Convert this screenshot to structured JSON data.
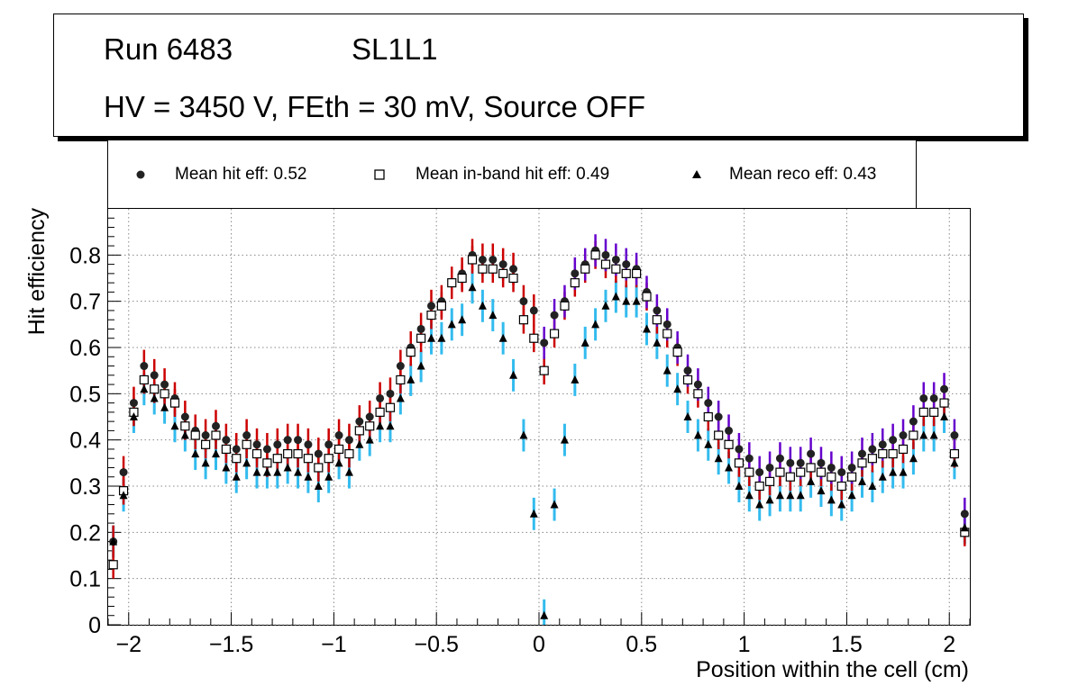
{
  "title": {
    "run": "Run 6483",
    "layer": "SL1L1",
    "conditions": "HV = 3450 V, FEth = 30 mV, Source OFF"
  },
  "legend": {
    "hit": "Mean hit  eff: 0.52",
    "inband": "Mean in-band hit eff: 0.49",
    "reco": "Mean reco eff: 0.43"
  },
  "colors": {
    "hit_marker": "#222222",
    "hit_err_left": "#cc0000",
    "hit_err_right": "#6600cc",
    "inband_err": "#cc0000",
    "reco_err": "#33bbee",
    "grid": "#888888"
  },
  "chart_data": {
    "type": "scatter",
    "title": "Run 6483 SL1L1 - HV = 3450 V, FEth = 30 mV, Source OFF",
    "xlabel": "Position within the cell (cm)",
    "ylabel": "Hit efficiency",
    "xlim": [
      -2.1,
      2.1
    ],
    "ylim": [
      0,
      0.9
    ],
    "grid": true,
    "xticks": [
      -2,
      -1.5,
      -1,
      -0.5,
      0,
      0.5,
      1,
      1.5,
      2
    ],
    "xtick_labels": [
      "−2",
      "−1.5",
      "−1",
      "−0.5",
      "0",
      "0.5",
      "1",
      "1.5",
      "2"
    ],
    "yticks": [
      0,
      0.1,
      0.2,
      0.3,
      0.4,
      0.5,
      0.6,
      0.7,
      0.8
    ],
    "ytick_labels": [
      "0",
      "0.1",
      "0.2",
      "0.3",
      "0.4",
      "0.5",
      "0.6",
      "0.7",
      "0.8"
    ],
    "x": [
      -2.075,
      -2.025,
      -1.975,
      -1.925,
      -1.875,
      -1.825,
      -1.775,
      -1.725,
      -1.675,
      -1.625,
      -1.575,
      -1.525,
      -1.475,
      -1.425,
      -1.375,
      -1.325,
      -1.275,
      -1.225,
      -1.175,
      -1.125,
      -1.075,
      -1.025,
      -0.975,
      -0.925,
      -0.875,
      -0.825,
      -0.775,
      -0.725,
      -0.675,
      -0.625,
      -0.575,
      -0.525,
      -0.475,
      -0.425,
      -0.375,
      -0.325,
      -0.275,
      -0.225,
      -0.175,
      -0.125,
      -0.075,
      -0.025,
      0.025,
      0.075,
      0.125,
      0.175,
      0.225,
      0.275,
      0.325,
      0.375,
      0.425,
      0.475,
      0.525,
      0.575,
      0.625,
      0.675,
      0.725,
      0.775,
      0.825,
      0.875,
      0.925,
      0.975,
      1.025,
      1.075,
      1.125,
      1.175,
      1.225,
      1.275,
      1.325,
      1.375,
      1.425,
      1.475,
      1.525,
      1.575,
      1.625,
      1.675,
      1.725,
      1.775,
      1.825,
      1.875,
      1.925,
      1.975,
      2.025,
      2.075
    ],
    "series": [
      {
        "name": "Mean hit  eff: 0.52",
        "marker": "circle",
        "err": 0.035,
        "values": [
          0.18,
          0.33,
          0.48,
          0.56,
          0.54,
          0.52,
          0.49,
          0.45,
          0.42,
          0.41,
          0.43,
          0.4,
          0.38,
          0.41,
          0.39,
          0.38,
          0.39,
          0.4,
          0.4,
          0.39,
          0.37,
          0.39,
          0.41,
          0.4,
          0.44,
          0.45,
          0.49,
          0.5,
          0.56,
          0.6,
          0.64,
          0.69,
          0.7,
          0.74,
          0.76,
          0.8,
          0.79,
          0.79,
          0.78,
          0.77,
          0.7,
          0.68,
          0.61,
          0.67,
          0.7,
          0.76,
          0.78,
          0.81,
          0.8,
          0.79,
          0.78,
          0.77,
          0.72,
          0.68,
          0.65,
          0.6,
          0.55,
          0.52,
          0.48,
          0.45,
          0.42,
          0.38,
          0.36,
          0.33,
          0.34,
          0.36,
          0.35,
          0.35,
          0.37,
          0.35,
          0.34,
          0.33,
          0.34,
          0.37,
          0.38,
          0.39,
          0.4,
          0.41,
          0.44,
          0.49,
          0.49,
          0.51,
          0.41,
          0.24
        ]
      },
      {
        "name": "Mean in-band hit eff: 0.49",
        "marker": "open-square",
        "err": 0.03,
        "values": [
          0.13,
          0.29,
          0.46,
          0.53,
          0.51,
          0.5,
          0.48,
          0.43,
          0.41,
          0.39,
          0.41,
          0.38,
          0.36,
          0.39,
          0.37,
          0.35,
          0.36,
          0.37,
          0.37,
          0.36,
          0.34,
          0.36,
          0.38,
          0.37,
          0.42,
          0.43,
          0.46,
          0.47,
          0.53,
          0.59,
          0.62,
          0.67,
          0.69,
          0.74,
          0.75,
          0.79,
          0.77,
          0.77,
          0.76,
          0.75,
          0.66,
          0.62,
          0.55,
          0.63,
          0.69,
          0.74,
          0.77,
          0.8,
          0.78,
          0.77,
          0.76,
          0.76,
          0.71,
          0.66,
          0.63,
          0.59,
          0.53,
          0.5,
          0.45,
          0.41,
          0.39,
          0.35,
          0.33,
          0.3,
          0.31,
          0.33,
          0.32,
          0.33,
          0.34,
          0.33,
          0.32,
          0.3,
          0.32,
          0.35,
          0.36,
          0.37,
          0.37,
          0.38,
          0.41,
          0.46,
          0.46,
          0.48,
          0.37,
          0.2
        ]
      },
      {
        "name": "Mean reco eff: 0.43",
        "marker": "triangle",
        "err": 0.035,
        "values": [
          0.18,
          0.28,
          0.45,
          0.51,
          0.49,
          0.47,
          0.43,
          0.41,
          0.37,
          0.35,
          0.37,
          0.34,
          0.32,
          0.35,
          0.33,
          0.33,
          0.33,
          0.34,
          0.33,
          0.32,
          0.3,
          0.32,
          0.35,
          0.33,
          0.39,
          0.4,
          0.43,
          0.43,
          0.49,
          0.53,
          0.56,
          0.62,
          0.62,
          0.65,
          0.66,
          0.73,
          0.69,
          0.67,
          0.62,
          0.54,
          0.41,
          0.24,
          0.02,
          0.26,
          0.4,
          0.53,
          0.61,
          0.65,
          0.69,
          0.71,
          0.7,
          0.7,
          0.64,
          0.61,
          0.55,
          0.51,
          0.45,
          0.41,
          0.39,
          0.36,
          0.34,
          0.3,
          0.28,
          0.26,
          0.27,
          0.28,
          0.28,
          0.28,
          0.31,
          0.29,
          0.27,
          0.26,
          0.28,
          0.31,
          0.3,
          0.32,
          0.33,
          0.33,
          0.36,
          0.41,
          0.41,
          0.45,
          0.35,
          0.21
        ]
      }
    ]
  }
}
